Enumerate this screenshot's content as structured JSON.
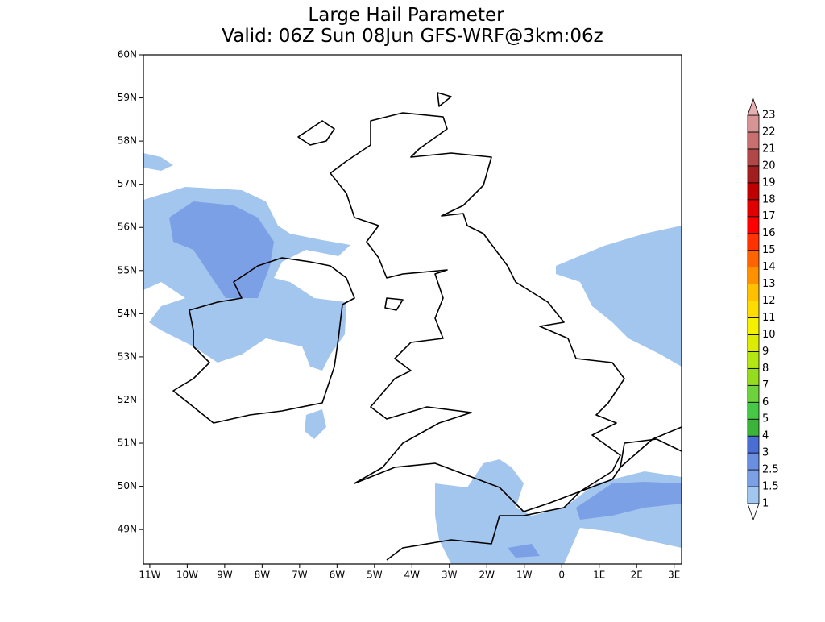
{
  "map": {
    "title": "Large Hail Parameter",
    "subtitle": "Valid: 06Z Sun 08Jun GFS-WRF@3km:06z",
    "lonlim": [
      -11.17,
      3.2
    ],
    "latlim": [
      48.2,
      60
    ],
    "xticks": [
      {
        "value": -11,
        "label": "11W"
      },
      {
        "value": -10,
        "label": "10W"
      },
      {
        "value": -9,
        "label": "9W"
      },
      {
        "value": -8,
        "label": "8W"
      },
      {
        "value": -7,
        "label": "7W"
      },
      {
        "value": -6,
        "label": "6W"
      },
      {
        "value": -5,
        "label": "5W"
      },
      {
        "value": -4,
        "label": "4W"
      },
      {
        "value": -3,
        "label": "3W"
      },
      {
        "value": -2,
        "label": "2W"
      },
      {
        "value": -1,
        "label": "1W"
      },
      0,
      {
        "value": 1,
        "label": "1E"
      },
      {
        "value": 2,
        "label": "2E"
      },
      {
        "value": 3,
        "label": "3E"
      }
    ],
    "yticks": [
      {
        "value": 49,
        "label": "49N"
      },
      {
        "value": 50,
        "label": "50N"
      },
      {
        "value": 51,
        "label": "51N"
      },
      {
        "value": 52,
        "label": "52N"
      },
      {
        "value": 53,
        "label": "53N"
      },
      {
        "value": 54,
        "label": "54N"
      },
      {
        "value": 55,
        "label": "55N"
      },
      {
        "value": 56,
        "label": "56N"
      },
      {
        "value": 57,
        "label": "57N"
      },
      {
        "value": 58,
        "label": "58N"
      },
      {
        "value": 59,
        "label": "59N"
      },
      {
        "value": 60,
        "label": "60N"
      }
    ],
    "colorbar": {
      "levels": [
        1,
        1.5,
        2.5,
        3,
        4,
        5,
        6,
        7,
        8,
        9,
        10,
        11,
        12,
        13,
        14,
        15,
        16,
        17,
        18,
        19,
        20,
        21,
        22,
        23
      ],
      "colors": [
        "#a3c6ee",
        "#7ca0e6",
        "#6a8ee0",
        "#4b6ed4",
        "#3cb43c",
        "#46c846",
        "#6ed23c",
        "#96dc1e",
        "#b4e614",
        "#dcec00",
        "#f5f000",
        "#ffdc00",
        "#ffc000",
        "#ff9000",
        "#ff6400",
        "#ff3200",
        "#ff0000",
        "#e00000",
        "#c00000",
        "#a01e1e",
        "#b04848",
        "#c87070",
        "#d69494"
      ],
      "under_color": "#ffffff",
      "over_color": "#e6b0b0"
    }
  }
}
